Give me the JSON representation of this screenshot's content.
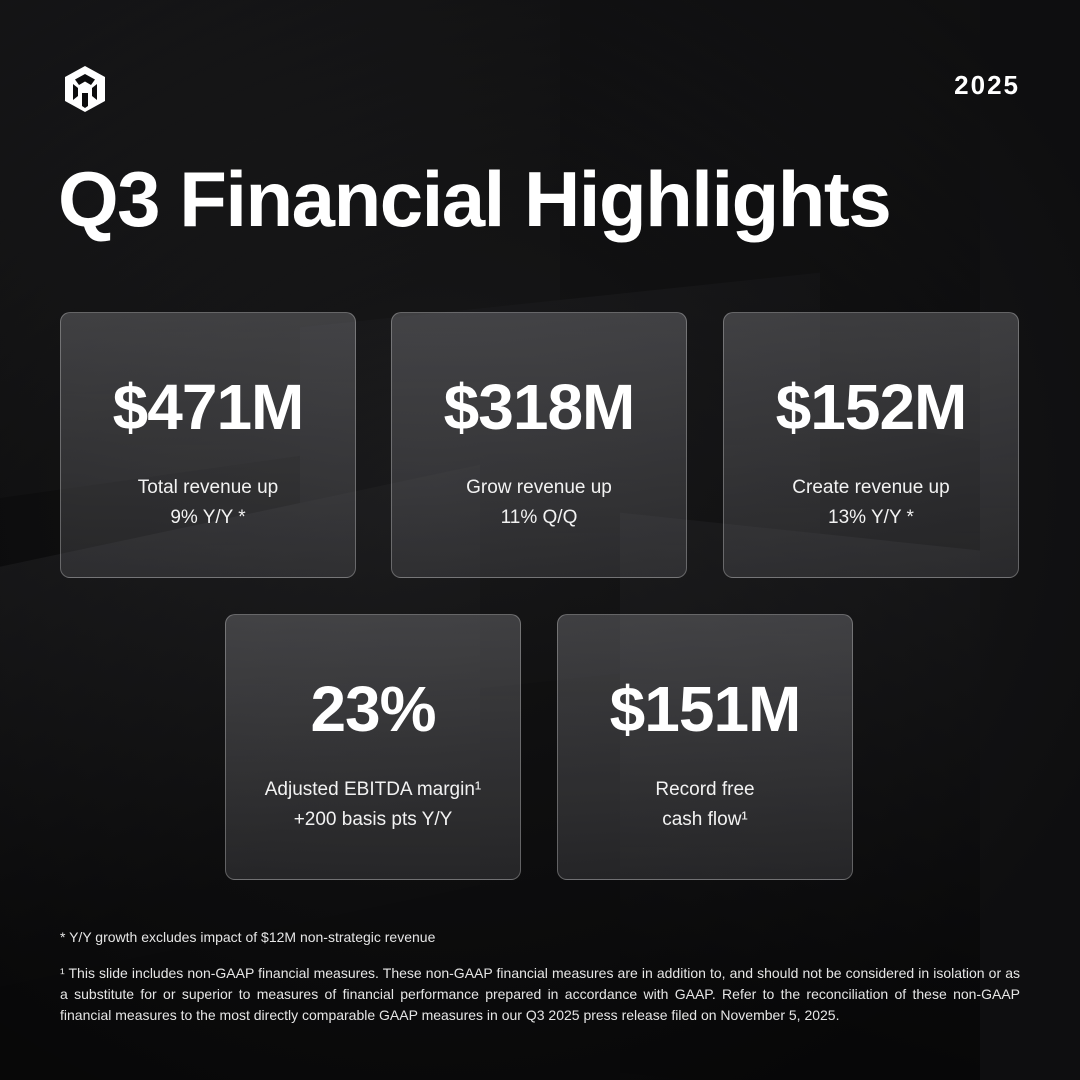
{
  "header": {
    "logo_icon": "unity-cube-icon",
    "year": "2025",
    "title": "Q3 Financial Highlights"
  },
  "cards": [
    {
      "value": "$471M",
      "label_line1": "Total revenue up",
      "label_line2": "9% Y/Y *"
    },
    {
      "value": "$318M",
      "label_line1": "Grow revenue up",
      "label_line2": "11% Q/Q"
    },
    {
      "value": "$152M",
      "label_line1": "Create revenue up",
      "label_line2": "13% Y/Y *"
    },
    {
      "value": "23%",
      "label_line1": "Adjusted EBITDA margin¹",
      "label_line2": "+200 basis pts Y/Y"
    },
    {
      "value": "$151M",
      "label_line1": "Record free",
      "label_line2": "cash flow¹"
    }
  ],
  "footnotes": {
    "yy_note": "* Y/Y growth excludes impact of $12M non-strategic revenue",
    "nongaap_note": "¹ This slide includes non-GAAP financial measures. These non-GAAP financial measures are in addition to, and should not be considered in isolation or as a substitute for or superior to measures of financial performance prepared in accordance with GAAP.  Refer to the reconciliation of these non-GAAP financial measures to the most directly comparable GAAP measures in our Q3 2025 press release filed on November 5, 2025."
  }
}
